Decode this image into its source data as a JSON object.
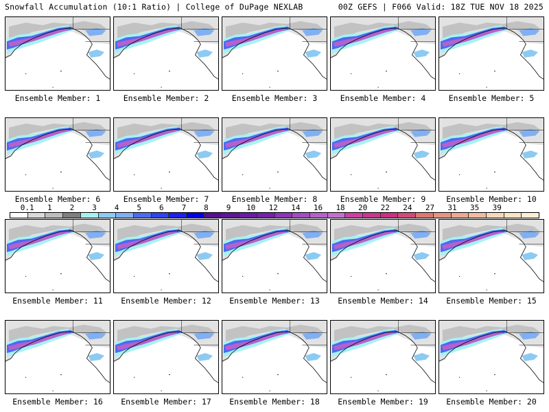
{
  "header": {
    "title_left": "Snowfall Accumulation (10:1 Ratio) | College of DuPage NEXLAB",
    "title_right": "00Z GEFS | F066 Valid: 18Z TUE NOV 18 2025"
  },
  "colorbar": {
    "units_hint": "inches",
    "labels": [
      "0.1",
      "1",
      "2",
      "3",
      "4",
      "5",
      "6",
      "7",
      "8",
      "9",
      "10",
      "12",
      "14",
      "16",
      "18",
      "20",
      "22",
      "24",
      "27",
      "31",
      "35",
      "39"
    ],
    "colors": [
      "#ffffff",
      "#d9d9d9",
      "#bdbdbd",
      "#a3a3a3",
      "#7f7f7f",
      "#a6f2f2",
      "#8ccaf2",
      "#80b0f2",
      "#5b8cf2",
      "#4d6af2",
      "#2e43f5",
      "#1f1ff0",
      "#0000e6",
      "#4b0a8c",
      "#560f94",
      "#5f169a",
      "#6a1ca3",
      "#7421ab",
      "#8027b3",
      "#8d33bd",
      "#a14cc4",
      "#b561cc",
      "#c66ed0",
      "#c94fb5",
      "#cc3fa3",
      "#c93690",
      "#cc2e80",
      "#d04a7a",
      "#d66070",
      "#dc7a72",
      "#e69580",
      "#edaa90",
      "#f0bb9f",
      "#f5c9aa",
      "#f8d7b8",
      "#fbe3c6",
      "#fdeed6"
    ]
  },
  "panels": [
    {
      "label": "Ensemble Member: 1"
    },
    {
      "label": "Ensemble Member: 2"
    },
    {
      "label": "Ensemble Member: 3"
    },
    {
      "label": "Ensemble Member: 4"
    },
    {
      "label": "Ensemble Member: 5"
    },
    {
      "label": "Ensemble Member: 6"
    },
    {
      "label": "Ensemble Member: 7"
    },
    {
      "label": "Ensemble Member: 8"
    },
    {
      "label": "Ensemble Member: 9"
    },
    {
      "label": "Ensemble Member: 10"
    },
    {
      "label": "Ensemble Member: 11"
    },
    {
      "label": "Ensemble Member: 12"
    },
    {
      "label": "Ensemble Member: 13"
    },
    {
      "label": "Ensemble Member: 14"
    },
    {
      "label": "Ensemble Member: 15"
    },
    {
      "label": "Ensemble Member: 16"
    },
    {
      "label": "Ensemble Member: 17"
    },
    {
      "label": "Ensemble Member: 18"
    },
    {
      "label": "Ensemble Member: 19"
    },
    {
      "label": "Ensemble Member: 20"
    }
  ]
}
